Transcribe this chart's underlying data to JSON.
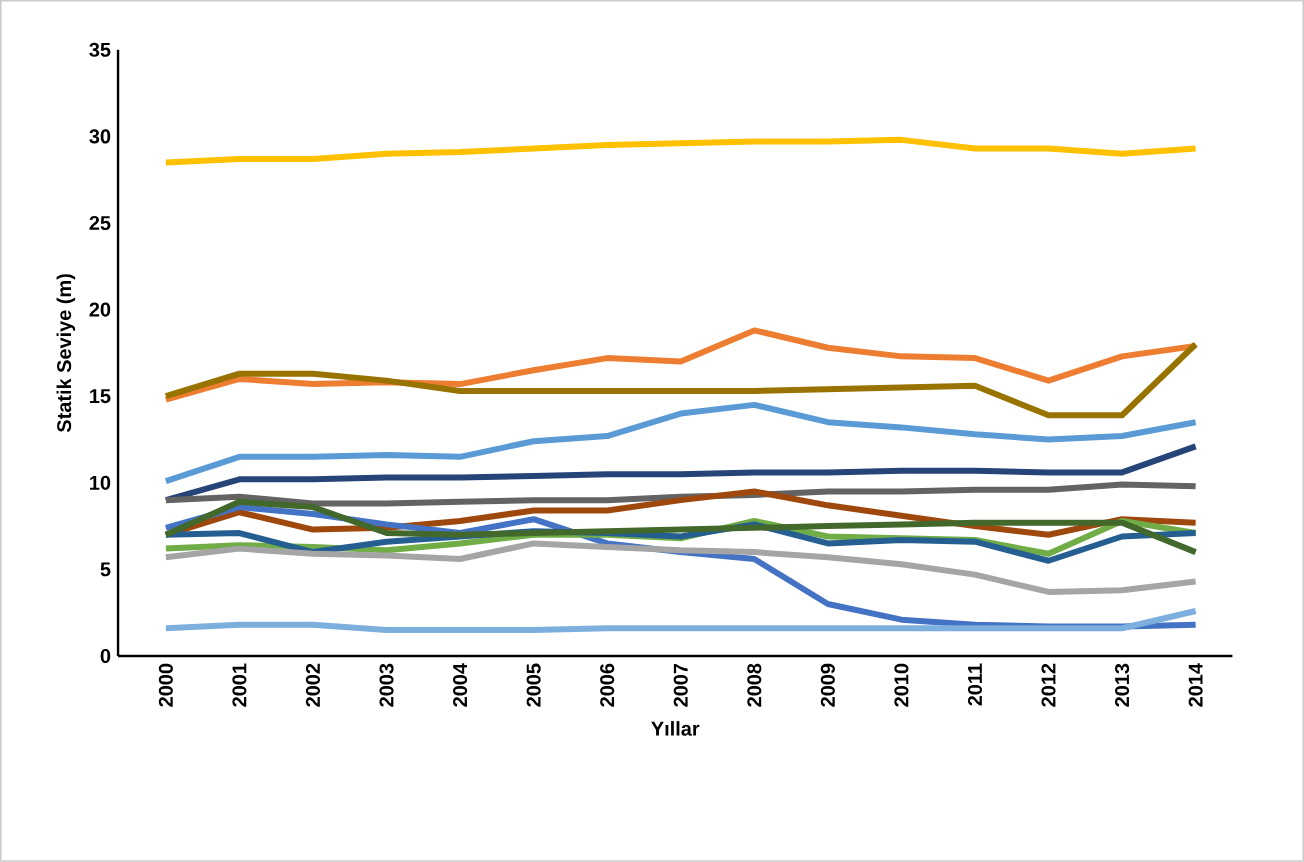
{
  "chart_data": {
    "type": "line",
    "xlabel": "Yıllar",
    "ylabel": "Statik Seviye (m)",
    "categories": [
      "2000",
      "2001",
      "2002",
      "2003",
      "2004",
      "2005",
      "2006",
      "2007",
      "2008",
      "2009",
      "2010",
      "2011",
      "2012",
      "2013",
      "2014"
    ],
    "ylim": [
      0,
      35
    ],
    "yticks": [
      0,
      5,
      10,
      15,
      20,
      25,
      30,
      35
    ],
    "grid": false,
    "marker": "none",
    "line_style": "solid",
    "series": [
      {
        "color": "#ffc000",
        "values": [
          28.5,
          28.7,
          28.7,
          29.0,
          29.1,
          29.3,
          29.5,
          29.6,
          29.7,
          29.7,
          29.8,
          29.3,
          29.3,
          29.0,
          29.3
        ]
      },
      {
        "color": "#ed7d31",
        "values": [
          14.8,
          16.0,
          15.7,
          15.8,
          15.7,
          16.5,
          17.2,
          17.0,
          18.8,
          17.8,
          17.3,
          17.2,
          15.9,
          17.3,
          17.9
        ]
      },
      {
        "color": "#997300",
        "values": [
          15.0,
          16.3,
          16.3,
          15.9,
          15.3,
          15.3,
          15.3,
          15.3,
          15.3,
          15.4,
          15.5,
          15.6,
          13.9,
          13.9,
          18.0
        ]
      },
      {
        "color": "#5b9bd5",
        "values": [
          10.1,
          11.5,
          11.5,
          11.6,
          11.5,
          12.4,
          12.7,
          14.0,
          14.5,
          13.5,
          13.2,
          12.8,
          12.5,
          12.7,
          13.5
        ]
      },
      {
        "color": "#264478",
        "values": [
          9.0,
          10.2,
          10.2,
          10.3,
          10.3,
          10.4,
          10.5,
          10.5,
          10.6,
          10.6,
          10.7,
          10.7,
          10.6,
          10.6,
          12.1
        ]
      },
      {
        "color": "#636363",
        "values": [
          9.0,
          9.2,
          8.8,
          8.8,
          8.9,
          9.0,
          9.0,
          9.2,
          9.3,
          9.5,
          9.5,
          9.6,
          9.6,
          9.9,
          9.8
        ]
      },
      {
        "color": "#9e480e",
        "values": [
          7.0,
          8.3,
          7.3,
          7.4,
          7.8,
          8.4,
          8.4,
          9.0,
          9.5,
          8.7,
          8.1,
          7.5,
          7.0,
          7.9,
          7.7
        ]
      },
      {
        "color": "#4472c4",
        "values": [
          7.4,
          8.6,
          8.2,
          7.6,
          7.1,
          7.9,
          6.5,
          6.0,
          5.6,
          3.0,
          2.1,
          1.8,
          1.7,
          1.7,
          1.8
        ]
      },
      {
        "color": "#70ad47",
        "values": [
          6.2,
          6.4,
          6.3,
          6.1,
          6.5,
          7.0,
          7.0,
          6.8,
          7.8,
          6.9,
          6.8,
          6.7,
          5.9,
          7.8,
          7.1
        ]
      },
      {
        "color": "#255e91",
        "values": [
          7.0,
          7.1,
          6.0,
          6.6,
          6.9,
          7.2,
          7.1,
          6.9,
          7.6,
          6.5,
          6.7,
          6.6,
          5.5,
          6.9,
          7.1
        ]
      },
      {
        "color": "#43682b",
        "values": [
          7.0,
          8.9,
          8.6,
          7.1,
          7.0,
          7.1,
          7.2,
          7.3,
          7.4,
          7.5,
          7.6,
          7.7,
          7.7,
          7.7,
          6.0
        ]
      },
      {
        "color": "#a5a5a5",
        "values": [
          5.7,
          6.2,
          5.9,
          5.8,
          5.6,
          6.5,
          6.3,
          6.1,
          6.0,
          5.7,
          5.3,
          4.7,
          3.7,
          3.8,
          4.3
        ]
      },
      {
        "color": "#7cafdd",
        "values": [
          1.6,
          1.8,
          1.8,
          1.5,
          1.5,
          1.5,
          1.6,
          1.6,
          1.6,
          1.6,
          1.6,
          1.6,
          1.6,
          1.6,
          2.6
        ]
      }
    ]
  }
}
